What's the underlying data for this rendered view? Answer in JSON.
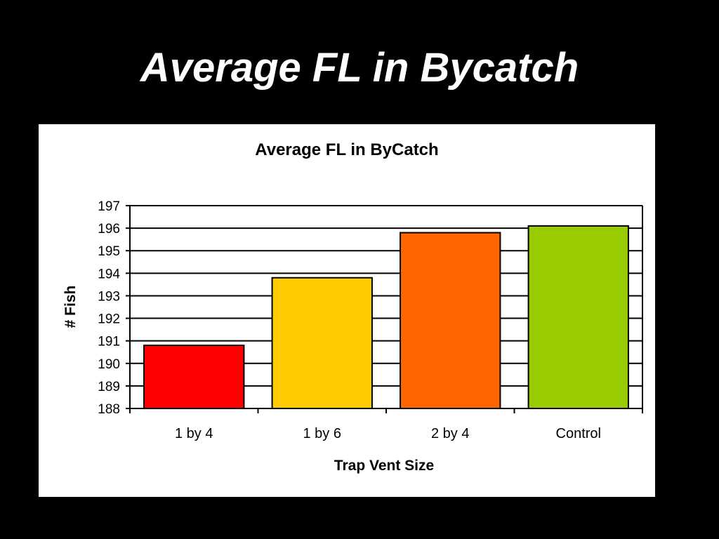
{
  "slide": {
    "title": "Average FL in Bycatch"
  },
  "chart_data": {
    "type": "bar",
    "title": "Average FL  in ByCatch",
    "xlabel": "Trap Vent Size",
    "ylabel": "# Fish",
    "categories": [
      "1 by 4",
      "1 by 6",
      "2 by 4",
      "Control"
    ],
    "values": [
      190.8,
      193.8,
      195.8,
      196.1
    ],
    "colors": [
      "#ff0000",
      "#ffcc00",
      "#ff6600",
      "#99cc00"
    ],
    "ylim": [
      188,
      197
    ],
    "yticks": [
      "188",
      "189",
      "190",
      "191",
      "192",
      "193",
      "194",
      "195",
      "196",
      "197"
    ],
    "grid": true,
    "legend": "none"
  }
}
